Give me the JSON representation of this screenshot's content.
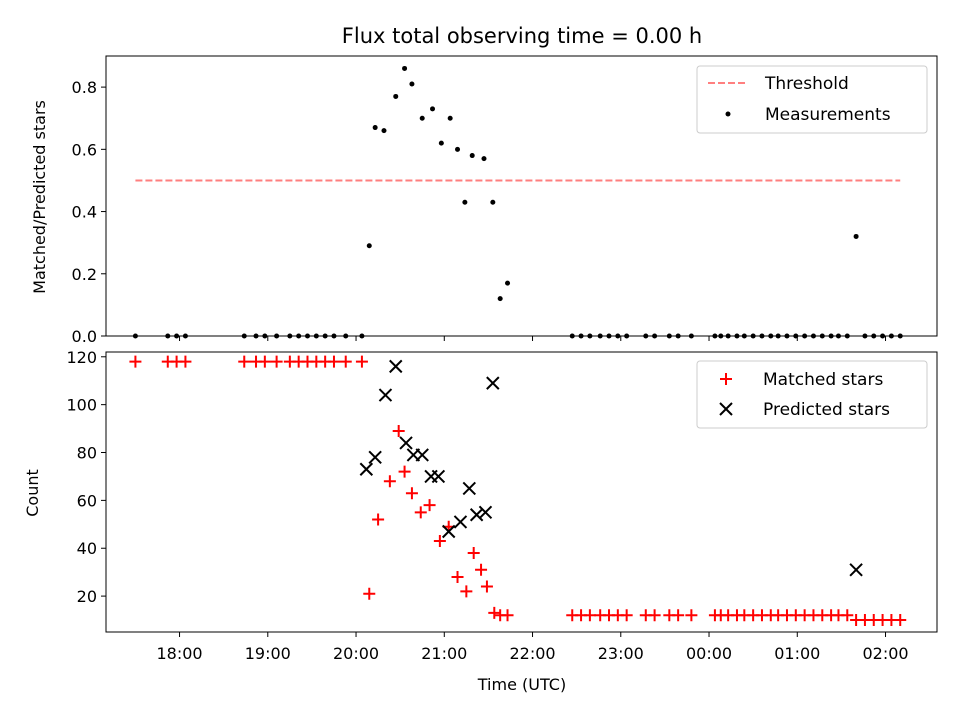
{
  "chart_data": [
    {
      "type": "scatter",
      "title": "Flux total observing time = 0.00 h",
      "ylabel": "Matched/Predicted stars",
      "xlabel": "",
      "xlim": [
        "17:10",
        "02:35"
      ],
      "ylim": [
        0,
        0.9
      ],
      "yticks": [
        0.0,
        0.2,
        0.4,
        0.6,
        0.8
      ],
      "ytick_labels": [
        "0.0",
        "0.2",
        "0.4",
        "0.6",
        "0.8"
      ],
      "grid": false,
      "legend": "top-right",
      "threshold": {
        "name": "Threshold",
        "value": 0.5,
        "x_range": [
          "17:30",
          "02:10"
        ],
        "color": "#ff7f7f",
        "style": "dashed"
      },
      "series": [
        {
          "name": "Measurements",
          "color": "#000000",
          "marker": "dot",
          "x": [
            "17:30",
            "17:52",
            "17:58",
            "18:04",
            "18:44",
            "18:52",
            "18:58",
            "19:06",
            "19:15",
            "19:21",
            "19:27",
            "19:33",
            "19:39",
            "19:45",
            "19:53",
            "20:04",
            "20:09",
            "20:13",
            "20:19",
            "20:27",
            "20:33",
            "20:38",
            "20:45",
            "20:52",
            "20:58",
            "21:04",
            "21:09",
            "21:14",
            "21:19",
            "21:27",
            "21:33",
            "21:38",
            "21:43",
            "22:27",
            "22:33",
            "22:39",
            "22:46",
            "22:52",
            "22:58",
            "23:04",
            "23:17",
            "23:23",
            "23:33",
            "23:39",
            "23:48",
            "00:04",
            "00:08",
            "00:13",
            "00:19",
            "00:24",
            "00:30",
            "00:36",
            "00:42",
            "00:47",
            "00:53",
            "00:59",
            "01:05",
            "01:11",
            "01:17",
            "01:23",
            "01:28",
            "01:34",
            "01:40",
            "01:46",
            "01:52",
            "01:58",
            "02:04",
            "02:10"
          ],
          "y": [
            0,
            0,
            0,
            0,
            0,
            0,
            0,
            0,
            0,
            0,
            0,
            0,
            0,
            0,
            0,
            0,
            0.29,
            0.67,
            0.66,
            0.77,
            0.86,
            0.81,
            0.7,
            0.73,
            0.62,
            0.7,
            0.6,
            0.43,
            0.58,
            0.57,
            0.43,
            0.12,
            0.17,
            0,
            0,
            0,
            0,
            0,
            0,
            0,
            0,
            0,
            0,
            0,
            0,
            0,
            0,
            0,
            0,
            0,
            0,
            0,
            0,
            0,
            0,
            0,
            0,
            0,
            0,
            0,
            0,
            0,
            0.32,
            0,
            0,
            0,
            0,
            0
          ]
        }
      ]
    },
    {
      "type": "scatter",
      "title": "",
      "xlabel": "Time (UTC)",
      "ylabel": "Count",
      "xlim": [
        "17:10",
        "02:35"
      ],
      "ylim": [
        5,
        122
      ],
      "yticks": [
        20,
        40,
        60,
        80,
        100,
        120
      ],
      "ytick_labels": [
        "20",
        "40",
        "60",
        "80",
        "100",
        "120"
      ],
      "xtick_labels": [
        "18:00",
        "19:00",
        "20:00",
        "21:00",
        "22:00",
        "23:00",
        "00:00",
        "01:00",
        "02:00"
      ],
      "grid": false,
      "legend": "top-right",
      "series": [
        {
          "name": "Matched stars",
          "color": "#ff0000",
          "marker": "plus",
          "x": [
            "17:30",
            "17:52",
            "17:58",
            "18:04",
            "18:44",
            "18:52",
            "18:58",
            "19:06",
            "19:15",
            "19:21",
            "19:27",
            "19:33",
            "19:39",
            "19:45",
            "19:53",
            "20:04",
            "20:09",
            "20:15",
            "20:23",
            "20:29",
            "20:33",
            "20:38",
            "20:44",
            "20:50",
            "20:57",
            "21:03",
            "21:09",
            "21:15",
            "21:20",
            "21:25",
            "21:29",
            "21:34",
            "21:38",
            "21:43",
            "22:27",
            "22:33",
            "22:39",
            "22:46",
            "22:52",
            "22:58",
            "23:04",
            "23:17",
            "23:23",
            "23:33",
            "23:39",
            "23:48",
            "00:04",
            "00:08",
            "00:13",
            "00:19",
            "00:24",
            "00:30",
            "00:36",
            "00:42",
            "00:47",
            "00:53",
            "00:59",
            "01:05",
            "01:11",
            "01:17",
            "01:23",
            "01:28",
            "01:34",
            "01:40",
            "01:46",
            "01:52",
            "01:58",
            "02:04",
            "02:10"
          ],
          "y": [
            118,
            118,
            118,
            118,
            118,
            118,
            118,
            118,
            118,
            118,
            118,
            118,
            118,
            118,
            118,
            118,
            21,
            52,
            68,
            89,
            72,
            63,
            55,
            58,
            43,
            49,
            28,
            22,
            38,
            31,
            24,
            13,
            12,
            12,
            12,
            12,
            12,
            12,
            12,
            12,
            12,
            12,
            12,
            12,
            12,
            12,
            12,
            12,
            12,
            12,
            12,
            12,
            12,
            12,
            12,
            12,
            12,
            12,
            12,
            12,
            12,
            12,
            12,
            10,
            10,
            10,
            10,
            10,
            10
          ]
        },
        {
          "name": "Predicted stars",
          "color": "#000000",
          "marker": "x",
          "x": [
            "20:07",
            "20:13",
            "20:20",
            "20:27",
            "20:34",
            "20:39",
            "20:45",
            "20:51",
            "20:56",
            "21:03",
            "21:11",
            "21:17",
            "21:22",
            "21:28",
            "21:33",
            "01:40"
          ],
          "y": [
            73,
            78,
            104,
            116,
            84,
            79,
            79,
            70,
            70,
            47,
            51,
            65,
            54,
            55,
            109,
            31
          ]
        }
      ]
    }
  ]
}
